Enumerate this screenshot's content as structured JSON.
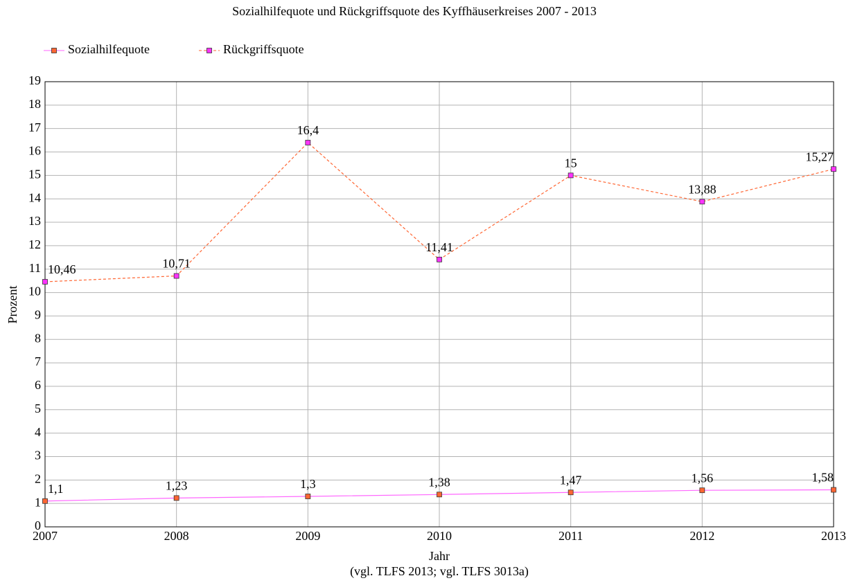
{
  "chart_data": {
    "type": "line",
    "title": "Sozialhilfequote und Rückgriffsquote des Kyffhäuserkreises 2007 - 2013",
    "x_label": "Jahr",
    "source": "(vgl. TLFS 2013; vgl. TLFS 3013a)",
    "y_label": "Prozent",
    "categories": [
      "2007",
      "2008",
      "2009",
      "2010",
      "2011",
      "2012",
      "2013"
    ],
    "series": [
      {
        "name": "Sozialhilfequote",
        "color": "#ff66ff",
        "marker_color": "#ff6633",
        "dashed": false,
        "values": [
          1.1,
          1.23,
          1.3,
          1.38,
          1.47,
          1.56,
          1.58
        ],
        "value_labels": [
          "1,1",
          "1,23",
          "1,3",
          "1,38",
          "1,47",
          "1,56",
          "1,58"
        ]
      },
      {
        "name": "Rückgriffsquote",
        "color": "#ff6633",
        "marker_color": "#ff33ff",
        "dashed": true,
        "values": [
          10.46,
          10.71,
          16.4,
          11.41,
          15,
          13.88,
          15.27
        ],
        "value_labels": [
          "10,46",
          "10,71",
          "16,4",
          "11,41",
          "15",
          "13,88",
          "15,27"
        ]
      }
    ],
    "ylim": [
      0,
      19
    ],
    "yticks": [
      0,
      1,
      2,
      3,
      4,
      5,
      6,
      7,
      8,
      9,
      10,
      11,
      12,
      13,
      14,
      15,
      16,
      17,
      18,
      19
    ],
    "grid": true
  }
}
